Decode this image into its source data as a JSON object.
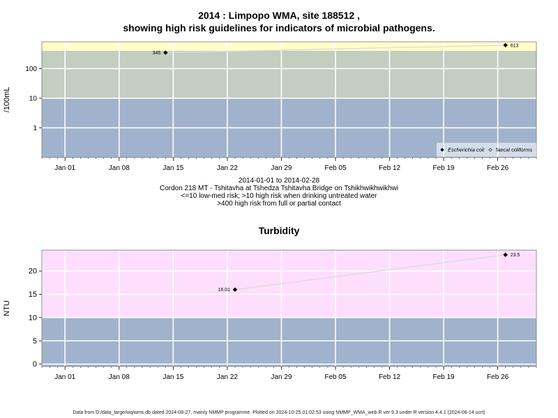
{
  "header": {
    "title_line1": "2014 : Limpopo WMA, site 188512 ,",
    "title_line2": "showing high risk guidelines for indicators of microbial pathogens."
  },
  "middle": {
    "date_range": "2014-01-01 to 2014-02-28",
    "site_desc": "Cordon 218 MT - Tshitavha at Tshedza Tshitavha Bridge on Tshikhwikhwikhwi",
    "guideline_1": "<=10 low-med risk; >10 high risk when drinking untreated water",
    "guideline_2": ">400 high risk from full or partial contact"
  },
  "footer": {
    "text": "Data from D:/data_large/wq/wms.db dated 2024-08-27, mainly NMMP programme. Plotted on 2024-10-25 01:02:53 using NMMP_WMA_web.R ver 9.3 under R version 4.4.1 (2024-06-14 ucrt)"
  },
  "colors": {
    "low_band": "#a1b3cc",
    "mid_band": "#c3cdc0",
    "high_band_micro": "#feffc9",
    "high_band_turb": "#fddffd",
    "line": "#dcdcdc",
    "grid": "#ffffff"
  },
  "chart_data": [
    {
      "type": "line",
      "title": "",
      "ylabel": "/100mL",
      "xlabel": "",
      "y_scale": "log",
      "ylim": [
        0.1,
        800
      ],
      "xlim": [
        "2013-12-29",
        "2014-03-03"
      ],
      "y_ticks": [
        1,
        10,
        100
      ],
      "y_tick_labels": [
        "1",
        "10",
        "100"
      ],
      "x_ticks": [
        "2014-01-01",
        "2014-01-08",
        "2014-01-15",
        "2014-01-22",
        "2014-01-29",
        "2014-02-05",
        "2014-02-12",
        "2014-02-19",
        "2014-02-26"
      ],
      "x_tick_labels": [
        "Jan 01",
        "Jan 08",
        "Jan 15",
        "Jan 22",
        "Jan 29",
        "Feb 05",
        "Feb 12",
        "Feb 19",
        "Feb 26"
      ],
      "bands": [
        {
          "from": 0.1,
          "to": 10,
          "color": "#a1b3cc"
        },
        {
          "from": 10,
          "to": 400,
          "color": "#c3cdc0"
        },
        {
          "from": 400,
          "to": 800,
          "color": "#feffc9"
        }
      ],
      "grid": true,
      "legend_position": "bottom-right",
      "series": [
        {
          "name": "Escherichia coli",
          "marker": "filled-diamond",
          "x": [
            "2014-01-14",
            "2014-02-27"
          ],
          "values": [
            345,
            613
          ],
          "labels": [
            "345",
            "613"
          ]
        }
      ],
      "legend": [
        {
          "label": "Escherichia coli",
          "marker": "filled-diamond",
          "italic": true
        },
        {
          "label": "faecal coliforms",
          "marker": "open-diamond",
          "italic": false
        }
      ]
    },
    {
      "type": "line",
      "title": "Turbidity",
      "ylabel": "NTU",
      "xlabel": "",
      "y_scale": "linear",
      "ylim": [
        -0.5,
        24.5
      ],
      "xlim": [
        "2013-12-29",
        "2014-03-03"
      ],
      "y_ticks": [
        0,
        5,
        10,
        15,
        20
      ],
      "y_tick_labels": [
        "0",
        "5",
        "10",
        "15",
        "20"
      ],
      "x_ticks": [
        "2014-01-01",
        "2014-01-08",
        "2014-01-15",
        "2014-01-22",
        "2014-01-29",
        "2014-02-05",
        "2014-02-12",
        "2014-02-19",
        "2014-02-26"
      ],
      "x_tick_labels": [
        "Jan 01",
        "Jan 08",
        "Jan 15",
        "Jan 22",
        "Jan 29",
        "Feb 05",
        "Feb 12",
        "Feb 19",
        "Feb 26"
      ],
      "bands": [
        {
          "from": -0.5,
          "to": 10,
          "color": "#a1b3cc"
        },
        {
          "from": 10,
          "to": 24.5,
          "color": "#fddffd"
        }
      ],
      "grid": true,
      "series": [
        {
          "marker": "filled-diamond",
          "x": [
            "2014-01-23",
            "2014-02-27"
          ],
          "values": [
            16.01,
            23.5
          ],
          "labels": [
            "16.01",
            "23.5"
          ]
        }
      ]
    }
  ]
}
